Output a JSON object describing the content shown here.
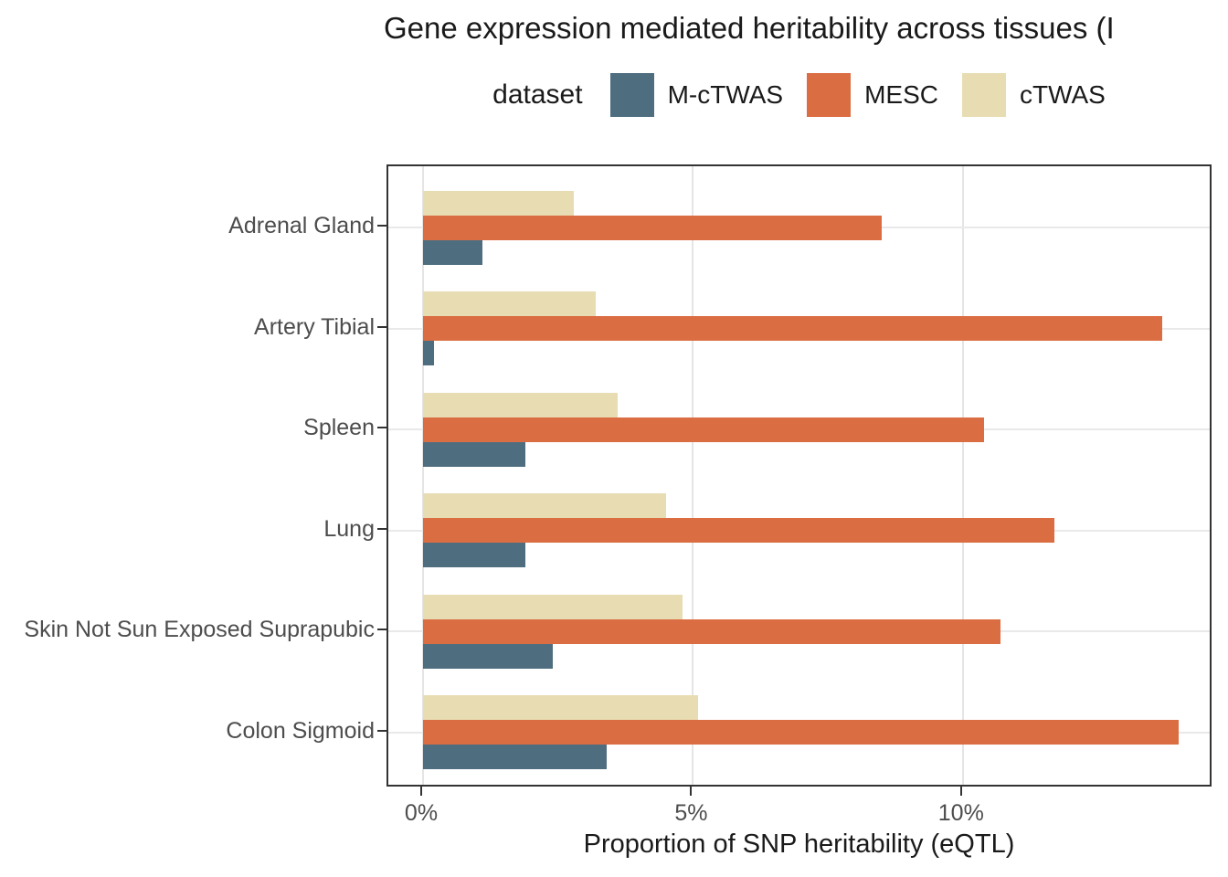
{
  "title": "Gene expression mediated heritability across tissues (I",
  "legend": {
    "title": "dataset",
    "items": [
      {
        "label": "M-cTWAS",
        "color": "#4e6e80"
      },
      {
        "label": "MESC",
        "color": "#db6d43"
      },
      {
        "label": "cTWAS",
        "color": "#e8dcb2"
      }
    ]
  },
  "chart_data": {
    "type": "bar",
    "orientation": "horizontal",
    "title": "Gene expression mediated heritability across tissues (I",
    "xlabel": "Proportion of SNP heritability (eQTL)",
    "ylabel": "",
    "categories": [
      "Adrenal Gland",
      "Artery Tibial",
      "Spleen",
      "Lung",
      "Skin Not Sun Exposed Suprapubic",
      "Colon Sigmoid"
    ],
    "series": [
      {
        "name": "M-cTWAS",
        "color": "#4e6e80",
        "values": [
          1.1,
          0.2,
          1.9,
          1.9,
          2.4,
          3.4
        ]
      },
      {
        "name": "MESC",
        "color": "#db6d43",
        "values": [
          8.5,
          13.7,
          10.4,
          11.7,
          10.7,
          14.0
        ]
      },
      {
        "name": "cTWAS",
        "color": "#e8dcb2",
        "values": [
          2.8,
          3.2,
          3.6,
          4.5,
          4.8,
          5.1
        ]
      }
    ],
    "group_order_top_to_bottom": [
      "cTWAS",
      "MESC",
      "M-cTWAS"
    ],
    "x_ticks": [
      {
        "label": "0%",
        "value": 0
      },
      {
        "label": "5%",
        "value": 5
      },
      {
        "label": "10%",
        "value": 10
      }
    ],
    "xlim": [
      -0.65,
      14.65
    ],
    "unit": "percent",
    "grid": "major-only",
    "legend_position": "top"
  },
  "colors": {
    "background": "#ffffff",
    "panel_border": "#333333",
    "gridline": "#e5e5e5",
    "axis_text": "#4d4d4d",
    "tick_mark": "#333333",
    "text": "#1a1a1a"
  }
}
